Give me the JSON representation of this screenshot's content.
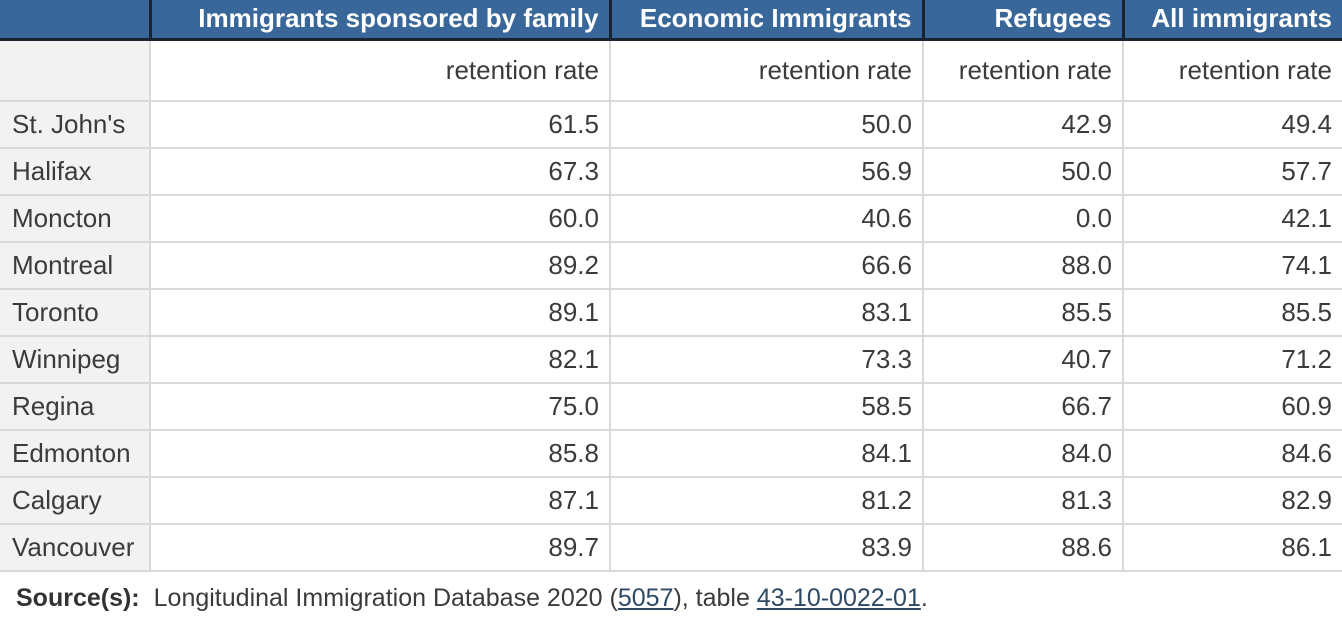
{
  "chart_data": {
    "type": "table",
    "measure_label": "retention rate",
    "columns": [
      {
        "label": "",
        "measure": ""
      },
      {
        "label": "Immigrants sponsored by family",
        "measure": "retention rate"
      },
      {
        "label": "Economic Immigrants",
        "measure": "retention rate"
      },
      {
        "label": "Refugees",
        "measure": "retention rate"
      },
      {
        "label": "All immigrants",
        "measure": "retention rate"
      }
    ],
    "rows": [
      {
        "city": "St. John's",
        "values": [
          "61.5",
          "50.0",
          "42.9",
          "49.4"
        ]
      },
      {
        "city": "Halifax",
        "values": [
          "67.3",
          "56.9",
          "50.0",
          "57.7"
        ]
      },
      {
        "city": "Moncton",
        "values": [
          "60.0",
          "40.6",
          "0.0",
          "42.1"
        ]
      },
      {
        "city": "Montreal",
        "values": [
          "89.2",
          "66.6",
          "88.0",
          "74.1"
        ]
      },
      {
        "city": "Toronto",
        "values": [
          "89.1",
          "83.1",
          "85.5",
          "85.5"
        ]
      },
      {
        "city": "Winnipeg",
        "values": [
          "82.1",
          "73.3",
          "40.7",
          "71.2"
        ]
      },
      {
        "city": "Regina",
        "values": [
          "75.0",
          "58.5",
          "66.7",
          "60.9"
        ]
      },
      {
        "city": "Edmonton",
        "values": [
          "85.8",
          "84.1",
          "84.0",
          "84.6"
        ]
      },
      {
        "city": "Calgary",
        "values": [
          "87.1",
          "81.2",
          "81.3",
          "82.9"
        ]
      },
      {
        "city": "Vancouver",
        "values": [
          "89.7",
          "83.9",
          "88.6",
          "86.1"
        ]
      }
    ]
  },
  "source": {
    "label": "Source(s):",
    "before": "Longitudinal Immigration Database 2020 (",
    "survey_link": "5057",
    "middle": "), table ",
    "table_link": "43-10-0022-01",
    "after": "."
  },
  "colors": {
    "header_bg": "#39679a",
    "header_divider": "#1a232e",
    "stub_bg": "#f2f2f2",
    "grid_line": "#d9d9d9",
    "text": "#3b3b3b",
    "link": "#2d4964"
  }
}
